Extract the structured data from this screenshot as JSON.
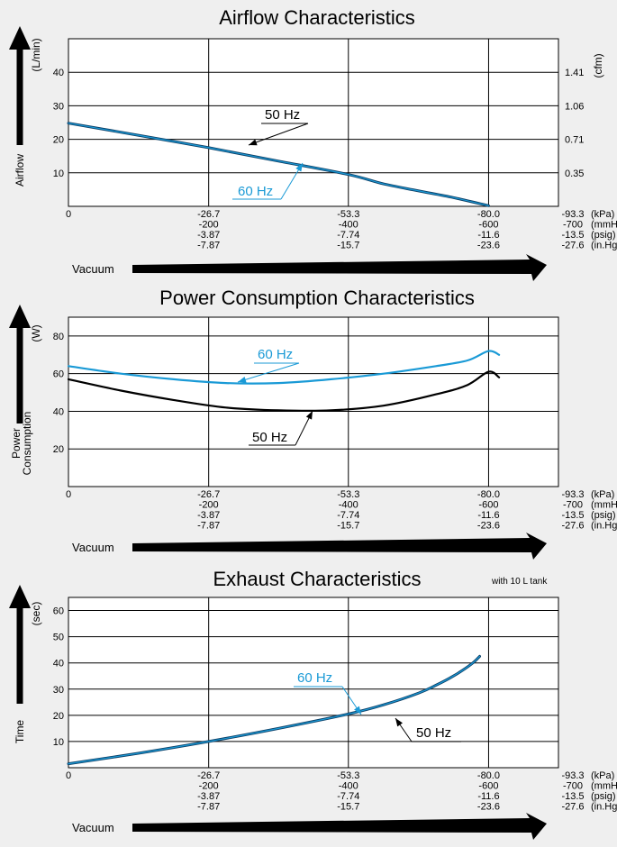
{
  "vacuum_label": "Vacuum",
  "x_units": [
    "(kPa)",
    "(mmHg)",
    "(psig)",
    "(in.Hg)"
  ],
  "x_ticks": [
    {
      "value": 0,
      "rows": [
        "0"
      ]
    },
    {
      "value": -26.7,
      "rows": [
        "-26.7",
        "-200",
        "-3.87",
        "-7.87"
      ]
    },
    {
      "value": -53.3,
      "rows": [
        "-53.3",
        "-400",
        "-7.74",
        "-15.7"
      ]
    },
    {
      "value": -80.0,
      "rows": [
        "-80.0",
        "-600",
        "-11.6",
        "-23.6"
      ]
    },
    {
      "value": -93.3,
      "rows": [
        "-93.3",
        "-700",
        "-13.5",
        "-27.6"
      ]
    }
  ],
  "colors": {
    "hz50": "#000000",
    "hz60": "#1a9ad6",
    "curve50_airflow": "#0d3f66",
    "arrow": "#000000"
  },
  "chart_data": [
    {
      "type": "line",
      "title": "Airflow Characteristics",
      "ylabel": "Airflow",
      "yunit": "(L/min)",
      "y2unit": "(cfm)",
      "xlim": [
        0,
        -93.3
      ],
      "ylim": [
        0,
        50
      ],
      "yticks": [
        10,
        20,
        30,
        40
      ],
      "y2ticks": [
        {
          "value": 10,
          "label": "0.35"
        },
        {
          "value": 20,
          "label": "0.71"
        },
        {
          "value": 30,
          "label": "1.06"
        },
        {
          "value": 40,
          "label": "1.41"
        }
      ],
      "grid": true,
      "series": [
        {
          "name": "50 Hz",
          "x": [
            0,
            -13.3,
            -26.7,
            -40,
            -53.3,
            -60,
            -66.7,
            -73.3,
            -80
          ],
          "y": [
            24.8,
            21.2,
            17.5,
            13.5,
            9.5,
            6.7,
            4.6,
            2.6,
            0.2
          ]
        },
        {
          "name": "60 Hz",
          "x": [
            0,
            -13.3,
            -26.7,
            -40,
            -53.3,
            -60,
            -66.7,
            -73.3,
            -80
          ],
          "y": [
            24.8,
            21.2,
            17.5,
            13.5,
            9.5,
            6.7,
            4.6,
            2.6,
            0.2
          ]
        }
      ]
    },
    {
      "type": "line",
      "title": "Power Consumption  Characteristics",
      "ylabel": "Power Consumption",
      "yunit": "(W)",
      "xlim": [
        0,
        -93.3
      ],
      "ylim": [
        0,
        90
      ],
      "yticks": [
        20,
        40,
        60,
        80
      ],
      "grid": true,
      "series": [
        {
          "name": "60 Hz",
          "x": [
            0,
            -10,
            -20,
            -30,
            -40,
            -50,
            -60,
            -70,
            -76,
            -80,
            -82
          ],
          "y": [
            64,
            60,
            57,
            55,
            55,
            57,
            60,
            64,
            67,
            72,
            70
          ]
        },
        {
          "name": "50 Hz",
          "x": [
            0,
            -10,
            -20,
            -30,
            -40,
            -50,
            -60,
            -70,
            -76,
            -80,
            -82
          ],
          "y": [
            57,
            51,
            46,
            42,
            40.5,
            40.5,
            43,
            49,
            54,
            61,
            58
          ]
        }
      ]
    },
    {
      "type": "line",
      "title": "Exhaust Characteristics",
      "annotation": "with 10 L tank",
      "ylabel": "Time",
      "yunit": "(sec)",
      "xlim": [
        0,
        -93.3
      ],
      "ylim": [
        0,
        65
      ],
      "yticks": [
        10,
        20,
        30,
        40,
        50,
        60
      ],
      "grid": true,
      "series": [
        {
          "name": "50 Hz",
          "x": [
            0,
            -13.3,
            -26.7,
            -40,
            -53.3,
            -60,
            -66.7,
            -70,
            -73.3,
            -76.7,
            -78.3
          ],
          "y": [
            1.5,
            5.5,
            10,
            15,
            20.5,
            24,
            28.5,
            31.5,
            35,
            39.5,
            42.5
          ]
        },
        {
          "name": "60 Hz",
          "x": [
            0,
            -13.3,
            -26.7,
            -40,
            -53.3,
            -60,
            -66.7,
            -70,
            -73.3,
            -76.7,
            -78.3
          ],
          "y": [
            1.5,
            5.5,
            10,
            15,
            20.5,
            24,
            28.5,
            31.5,
            35,
            39.5,
            42.5
          ]
        }
      ]
    }
  ]
}
